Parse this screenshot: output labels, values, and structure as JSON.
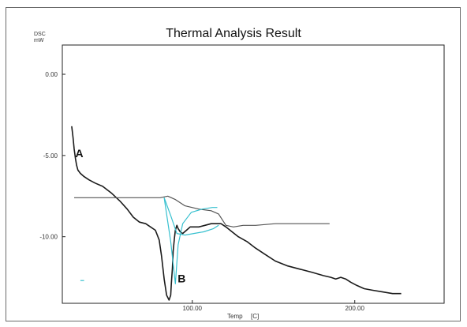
{
  "chart_data": {
    "type": "line",
    "title": "Thermal Analysis Result",
    "ylabel_line1": "DSC",
    "ylabel_line2": "mW",
    "xlabel": "Temp",
    "xlabel_unit": "[C]",
    "xlim": [
      20,
      255
    ],
    "ylim": [
      -14.1,
      1.8
    ],
    "x_ticks": [
      {
        "value": 100,
        "label": "100.00"
      },
      {
        "value": 200,
        "label": "200.00"
      }
    ],
    "y_ticks": [
      {
        "value": 0,
        "label": "0.00"
      },
      {
        "value": -5,
        "label": "-5.00"
      },
      {
        "value": -10,
        "label": "-10.00"
      }
    ],
    "grid": false,
    "annotations": [
      {
        "text": "A",
        "x": 28,
        "y": -5.1
      },
      {
        "text": "B",
        "x": 91,
        "y": -12.8
      }
    ],
    "series": [
      {
        "color": "#1a1a1a",
        "x": [
          25.8,
          26.6,
          27.3,
          28.1,
          28.8,
          29.6,
          31.1,
          33.4,
          36.4,
          40.2,
          44.8,
          50.1,
          55.4,
          59.9,
          63.7,
          67.5,
          71.3,
          74.3,
          77.3,
          79.6,
          81.1,
          82.7,
          84.2,
          85.7,
          86.7,
          87.1,
          87.8,
          88.2,
          89.0,
          89.6,
          90.5,
          91.3,
          92.6,
          94.1,
          96.4,
          98.7,
          101.0,
          104.0,
          107.8,
          111.6,
          114.6,
          117.7,
          120.7,
          124.5,
          128.3,
          133.6,
          138.9,
          145.0,
          151.1,
          158.7,
          166.3,
          173.9,
          180.8,
          185.3,
          188.3,
          191.4,
          194.4,
          197.5,
          201.3,
          205.8,
          211.1,
          217.2,
          223.3,
          228.6
        ],
        "y": [
          -3.2,
          -3.9,
          -4.6,
          -5.2,
          -5.6,
          -5.9,
          -6.1,
          -6.3,
          -6.5,
          -6.7,
          -6.9,
          -7.3,
          -7.8,
          -8.3,
          -8.8,
          -9.1,
          -9.2,
          -9.4,
          -9.6,
          -10.2,
          -11.2,
          -12.6,
          -13.6,
          -13.9,
          -13.6,
          -12.9,
          -11.9,
          -10.9,
          -10.1,
          -9.6,
          -9.3,
          -9.5,
          -9.7,
          -9.8,
          -9.6,
          -9.4,
          -9.4,
          -9.4,
          -9.3,
          -9.2,
          -9.2,
          -9.2,
          -9.4,
          -9.7,
          -10.0,
          -10.3,
          -10.7,
          -11.1,
          -11.5,
          -11.8,
          -12.0,
          -12.2,
          -12.4,
          -12.5,
          -12.6,
          -12.5,
          -12.6,
          -12.8,
          -13.0,
          -13.2,
          -13.3,
          -13.4,
          -13.5,
          -13.5
        ]
      },
      {
        "color": "#555555",
        "x": [
          27.3,
          40.2,
          55.4,
          70.6,
          80.3,
          84.9,
          89.4,
          95.5,
          104.0,
          111.6,
          116.2,
          120.7,
          125.3,
          131.3,
          139.0,
          151.1,
          166.3,
          181.5,
          184.5
        ],
        "y": [
          -7.6,
          -7.6,
          -7.6,
          -7.6,
          -7.6,
          -7.5,
          -7.7,
          -8.1,
          -8.3,
          -8.4,
          -8.6,
          -9.3,
          -9.4,
          -9.3,
          -9.3,
          -9.2,
          -9.2,
          -9.2,
          -9.2
        ]
      },
      {
        "color": "#36c0cf",
        "x": [
          82.7,
          86.7,
          89.6,
          91.3,
          94.1,
          99.4,
          106.2,
          112.3,
          115.4
        ],
        "y": [
          -7.6,
          -10.3,
          -12.9,
          -10.5,
          -9.2,
          -8.5,
          -8.3,
          -8.2,
          -8.2
        ]
      },
      {
        "color": "#36c0cf",
        "x": [
          82.7,
          86.7,
          90.5,
          95.5,
          100.9,
          107.0,
          113.1,
          116.2
        ],
        "y": [
          -7.6,
          -8.7,
          -9.8,
          -9.9,
          -9.8,
          -9.7,
          -9.5,
          -9.3
        ]
      },
      {
        "color": "#36c0cf",
        "x": [
          31.1,
          33.4
        ],
        "y": [
          -12.7,
          -12.7
        ]
      }
    ]
  }
}
